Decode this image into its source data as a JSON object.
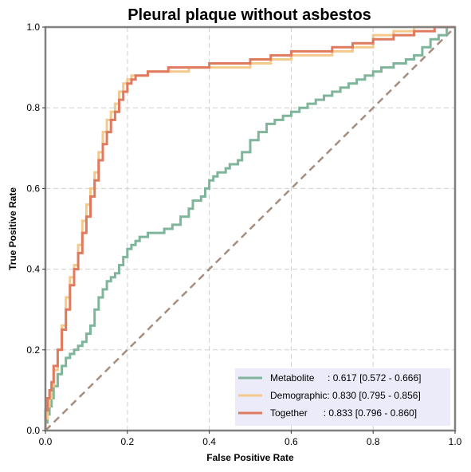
{
  "chart_data": {
    "type": "line",
    "title": "Pleural plaque without asbestos",
    "xlabel": "False Positive Rate",
    "ylabel": "True Positive Rate",
    "xlim": [
      0,
      1
    ],
    "ylim": [
      0,
      1
    ],
    "xticks": [
      "0.0",
      "0.2",
      "0.4",
      "0.6",
      "0.8",
      "1.0"
    ],
    "yticks": [
      "0.0",
      "0.2",
      "0.4",
      "0.6",
      "0.8",
      "1.0"
    ],
    "grid": true,
    "legend_position": "bottom-right",
    "reference_line": {
      "x": [
        0,
        1
      ],
      "y": [
        0,
        1
      ],
      "color": "#a68d7e",
      "style": "dashed"
    },
    "series": [
      {
        "name": "Metabolite",
        "legend_label": "Metabolite     : 0.617 [0.572 - 0.666]",
        "color": "#7fb59a",
        "x": [
          0,
          0.005,
          0.01,
          0.015,
          0.02,
          0.03,
          0.04,
          0.05,
          0.06,
          0.07,
          0.08,
          0.09,
          0.1,
          0.11,
          0.12,
          0.13,
          0.14,
          0.15,
          0.16,
          0.17,
          0.18,
          0.19,
          0.2,
          0.21,
          0.22,
          0.23,
          0.25,
          0.27,
          0.29,
          0.31,
          0.33,
          0.35,
          0.36,
          0.38,
          0.39,
          0.4,
          0.41,
          0.42,
          0.44,
          0.45,
          0.46,
          0.47,
          0.48,
          0.5,
          0.52,
          0.54,
          0.56,
          0.58,
          0.6,
          0.62,
          0.64,
          0.65,
          0.66,
          0.68,
          0.7,
          0.72,
          0.74,
          0.76,
          0.78,
          0.8,
          0.82,
          0.85,
          0.88,
          0.9,
          0.91,
          0.92,
          0.94,
          0.96,
          0.98,
          1.0
        ],
        "y": [
          0,
          0.02,
          0.04,
          0.06,
          0.08,
          0.11,
          0.14,
          0.16,
          0.18,
          0.19,
          0.2,
          0.21,
          0.22,
          0.24,
          0.26,
          0.3,
          0.33,
          0.35,
          0.37,
          0.38,
          0.39,
          0.41,
          0.43,
          0.45,
          0.46,
          0.47,
          0.48,
          0.49,
          0.49,
          0.5,
          0.51,
          0.53,
          0.55,
          0.57,
          0.58,
          0.6,
          0.62,
          0.63,
          0.64,
          0.65,
          0.66,
          0.66,
          0.67,
          0.69,
          0.72,
          0.74,
          0.76,
          0.77,
          0.78,
          0.79,
          0.8,
          0.81,
          0.81,
          0.82,
          0.83,
          0.84,
          0.85,
          0.86,
          0.87,
          0.88,
          0.89,
          0.9,
          0.91,
          0.92,
          0.93,
          0.93,
          0.95,
          0.97,
          0.98,
          1.0
        ]
      },
      {
        "name": "Demographic",
        "legend_label": "Demographic: 0.830 [0.795 - 0.856]",
        "color": "#f3c98c",
        "x": [
          0,
          0.005,
          0.01,
          0.015,
          0.02,
          0.03,
          0.04,
          0.05,
          0.06,
          0.07,
          0.08,
          0.09,
          0.1,
          0.11,
          0.12,
          0.13,
          0.14,
          0.15,
          0.16,
          0.17,
          0.18,
          0.19,
          0.2,
          0.21,
          0.22,
          0.23,
          0.25,
          0.3,
          0.35,
          0.4,
          0.45,
          0.5,
          0.55,
          0.6,
          0.65,
          0.7,
          0.75,
          0.8,
          0.85,
          0.9,
          0.95,
          1.0
        ],
        "y": [
          0,
          0.03,
          0.06,
          0.08,
          0.11,
          0.15,
          0.2,
          0.26,
          0.33,
          0.38,
          0.41,
          0.46,
          0.52,
          0.56,
          0.6,
          0.64,
          0.69,
          0.74,
          0.77,
          0.79,
          0.81,
          0.84,
          0.86,
          0.87,
          0.88,
          0.88,
          0.88,
          0.89,
          0.89,
          0.9,
          0.9,
          0.9,
          0.91,
          0.92,
          0.93,
          0.93,
          0.94,
          0.95,
          0.98,
          0.99,
          1.0,
          1.0
        ]
      },
      {
        "name": "Together",
        "legend_label": "Together      : 0.833 [0.796 - 0.860]",
        "color": "#e07a5f",
        "x": [
          0,
          0.005,
          0.01,
          0.015,
          0.02,
          0.03,
          0.04,
          0.05,
          0.06,
          0.07,
          0.08,
          0.09,
          0.1,
          0.11,
          0.12,
          0.13,
          0.14,
          0.15,
          0.16,
          0.17,
          0.18,
          0.19,
          0.2,
          0.21,
          0.22,
          0.23,
          0.25,
          0.3,
          0.35,
          0.4,
          0.45,
          0.5,
          0.55,
          0.6,
          0.65,
          0.7,
          0.75,
          0.8,
          0.85,
          0.9,
          0.95,
          1.0
        ],
        "y": [
          0,
          0.05,
          0.08,
          0.1,
          0.12,
          0.16,
          0.2,
          0.25,
          0.3,
          0.36,
          0.4,
          0.44,
          0.49,
          0.53,
          0.58,
          0.62,
          0.67,
          0.71,
          0.74,
          0.77,
          0.79,
          0.82,
          0.84,
          0.86,
          0.87,
          0.88,
          0.88,
          0.89,
          0.9,
          0.9,
          0.91,
          0.91,
          0.92,
          0.93,
          0.94,
          0.94,
          0.95,
          0.96,
          0.97,
          0.98,
          0.99,
          1.0
        ]
      }
    ]
  }
}
